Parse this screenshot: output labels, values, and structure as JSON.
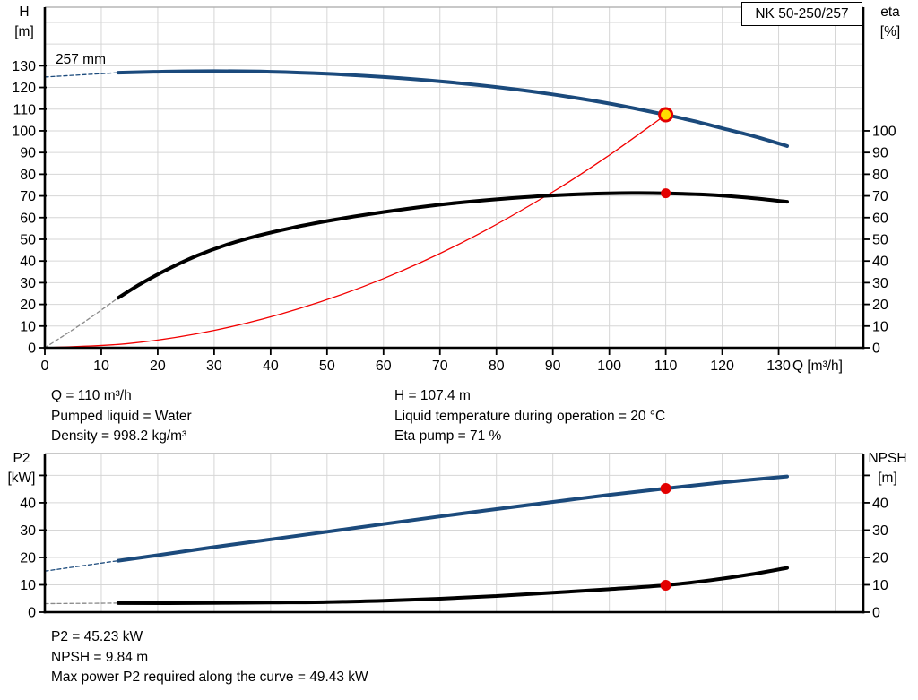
{
  "pump_name_box": "NK 50-250/257",
  "duty_info": {
    "q": "Q = 110 m³/h",
    "pumped_liquid": "Pumped liquid = Water",
    "density": "Density = 998.2 kg/m³",
    "h": "H = 107.4 m",
    "liquid_temp": "Liquid temperature during operation = 20 °C",
    "eta_pump": "Eta pump = 71 %"
  },
  "result_info": {
    "p2": "P2 = 45.23 kW",
    "npsh": "NPSH = 9.84 m",
    "max_power": "Max power P2 required along the curve = 49.43 kW"
  },
  "colors": {
    "curve_blue": "#1b4a7c",
    "curve_black": "#000000",
    "system_red": "#f20000",
    "marker_red": "#e30000",
    "marker_yellow": "#ffdf00",
    "grid": "#d6d6d6",
    "plot_border": "#a8a8a8"
  },
  "chart_data": [
    {
      "type": "line",
      "name": "hq-performance-chart",
      "curve_size_label": "257 mm",
      "x_axis": {
        "label": "Q [m³/h]",
        "min": 0,
        "max": 145,
        "step": 10,
        "ticks": [
          0,
          10,
          20,
          30,
          40,
          50,
          60,
          70,
          80,
          90,
          100,
          110,
          120,
          130
        ]
      },
      "y_left": {
        "label": "H",
        "unit": "[m]",
        "min": 0,
        "max": 157,
        "step": 10,
        "ticks": [
          0,
          10,
          20,
          30,
          40,
          50,
          60,
          70,
          80,
          90,
          100,
          110,
          120,
          130
        ]
      },
      "y_right": {
        "label": "eta",
        "unit": "[%]",
        "ticks": [
          0,
          10,
          20,
          30,
          40,
          50,
          60,
          70,
          80,
          90,
          100
        ]
      },
      "series": [
        {
          "name": "head-curve-extrapolated",
          "color": "#1b4a7c",
          "width": 1.3,
          "dash": "4 3",
          "points": [
            [
              0,
              124.8
            ],
            [
              13,
              126.8
            ]
          ]
        },
        {
          "name": "efficiency-curve-extrapolated",
          "color": "#8a8a8a",
          "width": 1.3,
          "dash": "4 3",
          "points": [
            [
              0,
              0
            ],
            [
              6.5,
              11
            ],
            [
              13,
              23
            ]
          ]
        },
        {
          "name": "system-curve",
          "color": "#f20000",
          "width": 1.3,
          "points": [
            [
              0,
              0
            ],
            [
              15,
              2
            ],
            [
              30,
              8
            ],
            [
              45,
              18
            ],
            [
              60,
              31.9
            ],
            [
              75,
              49.9
            ],
            [
              90,
              71.9
            ],
            [
              100,
              88.8
            ],
            [
              110,
              107.4
            ]
          ]
        },
        {
          "name": "head-curve",
          "color": "#1b4a7c",
          "width": 4,
          "points": [
            [
              13,
              126.8
            ],
            [
              20,
              127.2
            ],
            [
              30,
              127.5
            ],
            [
              40,
              127.2
            ],
            [
              50,
              126.3
            ],
            [
              60,
              124.8
            ],
            [
              70,
              122.8
            ],
            [
              80,
              120.2
            ],
            [
              90,
              116.8
            ],
            [
              100,
              112.6
            ],
            [
              110,
              107.4
            ],
            [
              115,
              104.5
            ],
            [
              120,
              101.2
            ],
            [
              126,
              97.2
            ],
            [
              131.5,
              93
            ]
          ]
        },
        {
          "name": "efficiency-curve",
          "color": "#000000",
          "width": 4,
          "points": [
            [
              13,
              23
            ],
            [
              17,
              29.5
            ],
            [
              22,
              36.5
            ],
            [
              27,
              42.5
            ],
            [
              32,
              47.3
            ],
            [
              38,
              51.8
            ],
            [
              44,
              55.4
            ],
            [
              50,
              58.4
            ],
            [
              57,
              61.4
            ],
            [
              64,
              64
            ],
            [
              72,
              66.5
            ],
            [
              80,
              68.4
            ],
            [
              88,
              69.9
            ],
            [
              96,
              70.9
            ],
            [
              104,
              71.3
            ],
            [
              110,
              71.2
            ],
            [
              117,
              70.6
            ],
            [
              124,
              69.3
            ],
            [
              131.5,
              67.3
            ]
          ]
        }
      ],
      "markers": [
        {
          "name": "duty-point",
          "x": 110,
          "y": 107.4,
          "r": 7,
          "fill": "#ffdf00",
          "stroke": "#e30000",
          "stroke_width": 3
        },
        {
          "name": "efficiency-duty-point",
          "x": 110,
          "y": 71.2,
          "r": 5.5,
          "fill": "#e30000"
        }
      ]
    },
    {
      "type": "line",
      "name": "p2-npsh-chart",
      "x_axis": {
        "label": "",
        "min": 0,
        "max": 145,
        "step": 10,
        "ticks": []
      },
      "y_left": {
        "label": "P2",
        "unit": "[kW]",
        "min": 0,
        "max": 58,
        "step": 10,
        "ticks": [
          0,
          10,
          20,
          30,
          40
        ],
        "tick_marks": [
          0,
          10,
          20,
          30,
          40,
          50
        ]
      },
      "y_right": {
        "label": "NPSH",
        "unit": "[m]",
        "ticks": [
          0,
          10,
          20,
          30,
          40
        ],
        "tick_marks": [
          0,
          10,
          20,
          30,
          40,
          50
        ]
      },
      "series": [
        {
          "name": "p2-curve-extrapolated",
          "color": "#1b4a7c",
          "width": 1.3,
          "dash": "4 3",
          "points": [
            [
              0,
              15
            ],
            [
              13,
              18.8
            ]
          ]
        },
        {
          "name": "npsh-curve-extrapolated",
          "color": "#8a8a8a",
          "width": 1.3,
          "dash": "4 3",
          "points": [
            [
              0,
              3.1
            ],
            [
              13,
              3.3
            ]
          ]
        },
        {
          "name": "p2-curve",
          "color": "#1b4a7c",
          "width": 4,
          "points": [
            [
              13,
              18.8
            ],
            [
              20,
              20.8
            ],
            [
              30,
              23.8
            ],
            [
              40,
              26.6
            ],
            [
              50,
              29.4
            ],
            [
              60,
              32.2
            ],
            [
              70,
              35
            ],
            [
              80,
              37.7
            ],
            [
              90,
              40.3
            ],
            [
              100,
              42.9
            ],
            [
              110,
              45.23
            ],
            [
              120,
              47.4
            ],
            [
              131.5,
              49.6
            ]
          ]
        },
        {
          "name": "npsh-curve",
          "color": "#000000",
          "width": 4,
          "points": [
            [
              13,
              3.3
            ],
            [
              25,
              3.3
            ],
            [
              40,
              3.5
            ],
            [
              50,
              3.7
            ],
            [
              60,
              4.2
            ],
            [
              70,
              4.9
            ],
            [
              80,
              5.9
            ],
            [
              90,
              7.1
            ],
            [
              100,
              8.4
            ],
            [
              110,
              9.84
            ],
            [
              118,
              11.7
            ],
            [
              125,
              13.8
            ],
            [
              131.5,
              16.2
            ]
          ]
        }
      ],
      "markers": [
        {
          "name": "p2-duty-point",
          "x": 110,
          "y": 45.23,
          "r": 6,
          "fill": "#e30000"
        },
        {
          "name": "npsh-duty-point",
          "x": 110,
          "y": 9.84,
          "r": 6,
          "fill": "#e30000"
        }
      ]
    }
  ]
}
